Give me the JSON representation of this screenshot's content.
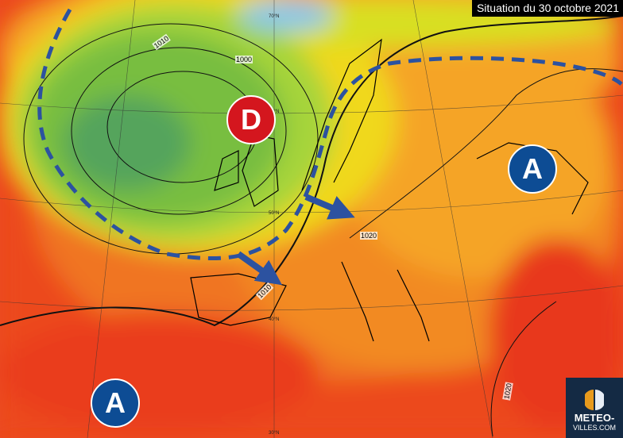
{
  "title": "Situation du 30 octobre 2021",
  "pressure_systems": [
    {
      "type": "low",
      "letter": "D",
      "color": "#d4161e"
    },
    {
      "type": "high",
      "letter": "A",
      "color": "#0d4c94"
    },
    {
      "type": "high",
      "letter": "A",
      "color": "#0d4c94"
    }
  ],
  "isobar_labels": [
    "1010",
    "1000",
    "1020",
    "1010",
    "1020"
  ],
  "latitude_labels": [
    "70°N",
    "60°N",
    "50°N",
    "40°N",
    "30°N"
  ],
  "logo": {
    "line1": "METEO-",
    "line2": "VILLES.COM"
  },
  "colors": {
    "front": "#2c52a0",
    "arrow": "#2c52a0",
    "low": "#d4161e",
    "high": "#0d4c94"
  }
}
